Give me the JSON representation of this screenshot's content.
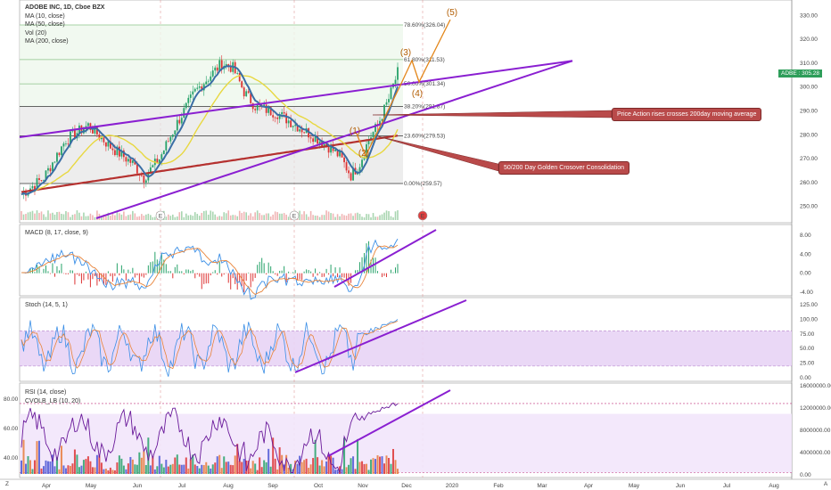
{
  "header": {
    "symbol_line": "ADOBE INC, 1D, Cboe BZX",
    "ma10": "MA (10, close)",
    "ma50": "MA (50, close)",
    "vol": "Vol (20)",
    "ma200": "MA (200, close)"
  },
  "price_tag": {
    "symbol": "ADBE",
    "value": "305.28"
  },
  "panels": {
    "macd_label": "MACD (8, 17, close, 9)",
    "stoch_label": "Stoch (14, 5, 1)",
    "rsi_label": "RSI (14, close)",
    "cvol_label": "CVOLB_LB (10, 20)"
  },
  "annotations": {
    "price_action": "Price Action rises crosses 200day moving average",
    "golden_cross": "50/200 Day Golden Crosover Consolidation"
  },
  "waves": [
    "(1)",
    "(2)",
    "(3)",
    "(4)",
    "(5)"
  ],
  "earnings_markers": [
    "E",
    "E",
    "E"
  ],
  "axes": {
    "months": [
      "Apr",
      "May",
      "Jun",
      "Jul",
      "Aug",
      "Sep",
      "Oct",
      "Nov",
      "Dec",
      "2020",
      "Feb",
      "Mar",
      "Apr",
      "May",
      "Jun",
      "Jul",
      "Aug"
    ],
    "price_ticks": [
      "330.00",
      "320.00",
      "310.00",
      "300.00",
      "290.00",
      "280.00",
      "270.00",
      "260.00",
      "250.00"
    ],
    "macd_ticks": [
      "8.00",
      "4.00",
      "0.00",
      "-4.00"
    ],
    "stoch_ticks": [
      "125.00",
      "100.00",
      "75.00",
      "50.00",
      "25.00",
      "0.00"
    ],
    "rsi_ticks": [
      "80.00",
      "60.00",
      "40.00"
    ],
    "cvol_ticks": [
      "16000000.00",
      "12000000.00",
      "8000000.00",
      "4000000.00",
      "0.00"
    ],
    "corner_left": "Z",
    "corner_right": "A"
  },
  "chart_data": {
    "type": "line",
    "title": "ADOBE INC, 1D, Cboe BZX",
    "fib_levels": [
      {
        "label": "78.60%(326.04)",
        "value": 326.04
      },
      {
        "label": "61.80%(311.53)",
        "value": 311.53
      },
      {
        "label": "50.00%(301.34)",
        "value": 301.34
      },
      {
        "label": "38.20%(291.87)",
        "value": 291.87
      },
      {
        "label": "23.60%(279.53)",
        "value": 279.53
      },
      {
        "label": "0.00%(259.57)",
        "value": 259.57
      }
    ],
    "ylim": [
      245,
      335
    ],
    "last_price": 305.28
  },
  "colors": {
    "ma10": "#3a6ea5",
    "ma50": "#e8d840",
    "ma200": "#b5312f",
    "trend": "#8a1fd1",
    "wave": "#e3861a",
    "fib": "#333333",
    "stoch_band": "#e8d4f5"
  }
}
